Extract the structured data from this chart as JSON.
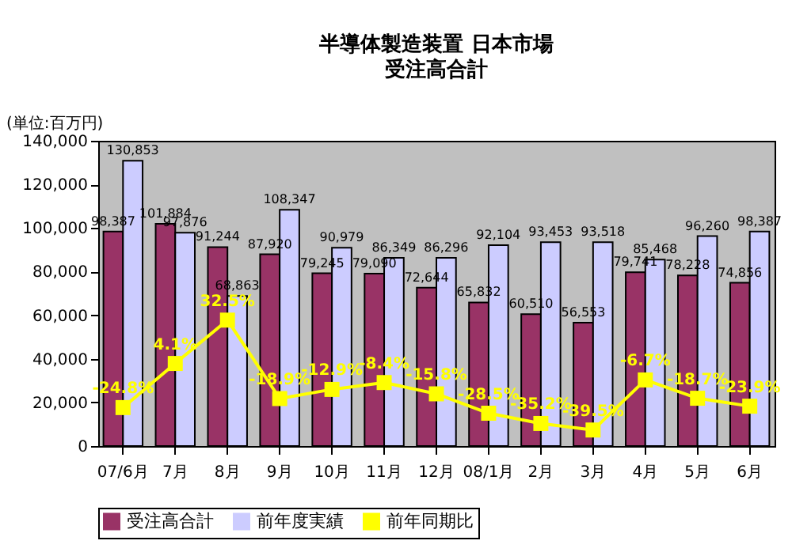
{
  "chart_data": {
    "type": "bar",
    "title": "半導体製造装置 日本市場",
    "subtitle": "受注高合計",
    "ylabel": "(単位:百万円)",
    "categories": [
      "07/6月",
      "7月",
      "8月",
      "9月",
      "10月",
      "11月",
      "12月",
      "08/1月",
      "2月",
      "3月",
      "4月",
      "5月",
      "6月"
    ],
    "series": [
      {
        "name": "受注高合計",
        "type": "bar",
        "color": "#993366",
        "values": [
          98387,
          101884,
          91244,
          87920,
          79245,
          79090,
          72644,
          65832,
          60510,
          56553,
          79741,
          78228,
          74856
        ],
        "value_labels": [
          "98,387",
          "101,884",
          "91,244",
          "87,920",
          "79,245",
          "79,090",
          "72,644",
          "65,832",
          "60,510",
          "56,553",
          "79,741",
          "78,228",
          "74,856"
        ]
      },
      {
        "name": "前年度実績",
        "type": "bar",
        "color": "#ccccff",
        "values": [
          130853,
          97876,
          68863,
          108347,
          90979,
          86349,
          86296,
          92104,
          93453,
          93518,
          85468,
          96260,
          98387
        ],
        "value_labels": [
          "130,853",
          "97,876",
          "68,863",
          "108,347",
          "90,979",
          "86,349",
          "86,296",
          "92,104",
          "93,453",
          "93,518",
          "85,468",
          "96,260",
          "98,387"
        ]
      },
      {
        "name": "前年同期比",
        "type": "line",
        "axis": "y2",
        "marker": "square",
        "color": "#ffff00",
        "values": [
          -24.8,
          4.1,
          32.5,
          -18.9,
          -12.9,
          -8.4,
          -15.8,
          -28.5,
          -35.2,
          -39.5,
          -6.7,
          -18.7,
          -23.9
        ],
        "value_labels": [
          "-24.8%",
          "4.1%",
          "32.5%",
          "-18.9%",
          "-12.9%",
          "-8.4%",
          "-15.8%",
          "-28.5%",
          "-35.2%",
          "-39.5%",
          "-6.7%",
          "-18.7%",
          "-23.9%"
        ]
      }
    ],
    "ylim": [
      0,
      140000
    ],
    "yticks": [
      {
        "value": 0,
        "label": "0"
      },
      {
        "value": 20000,
        "label": "20,000"
      },
      {
        "value": 40000,
        "label": "40,000"
      },
      {
        "value": 60000,
        "label": "60,000"
      },
      {
        "value": 80000,
        "label": "80,000"
      },
      {
        "value": 100000,
        "label": "100,000"
      },
      {
        "value": 120000,
        "label": "120,000"
      },
      {
        "value": 140000,
        "label": "140,000"
      }
    ],
    "y2lim": [
      -50,
      150
    ],
    "data_labels": true,
    "grid": false,
    "legend": "bottom"
  }
}
